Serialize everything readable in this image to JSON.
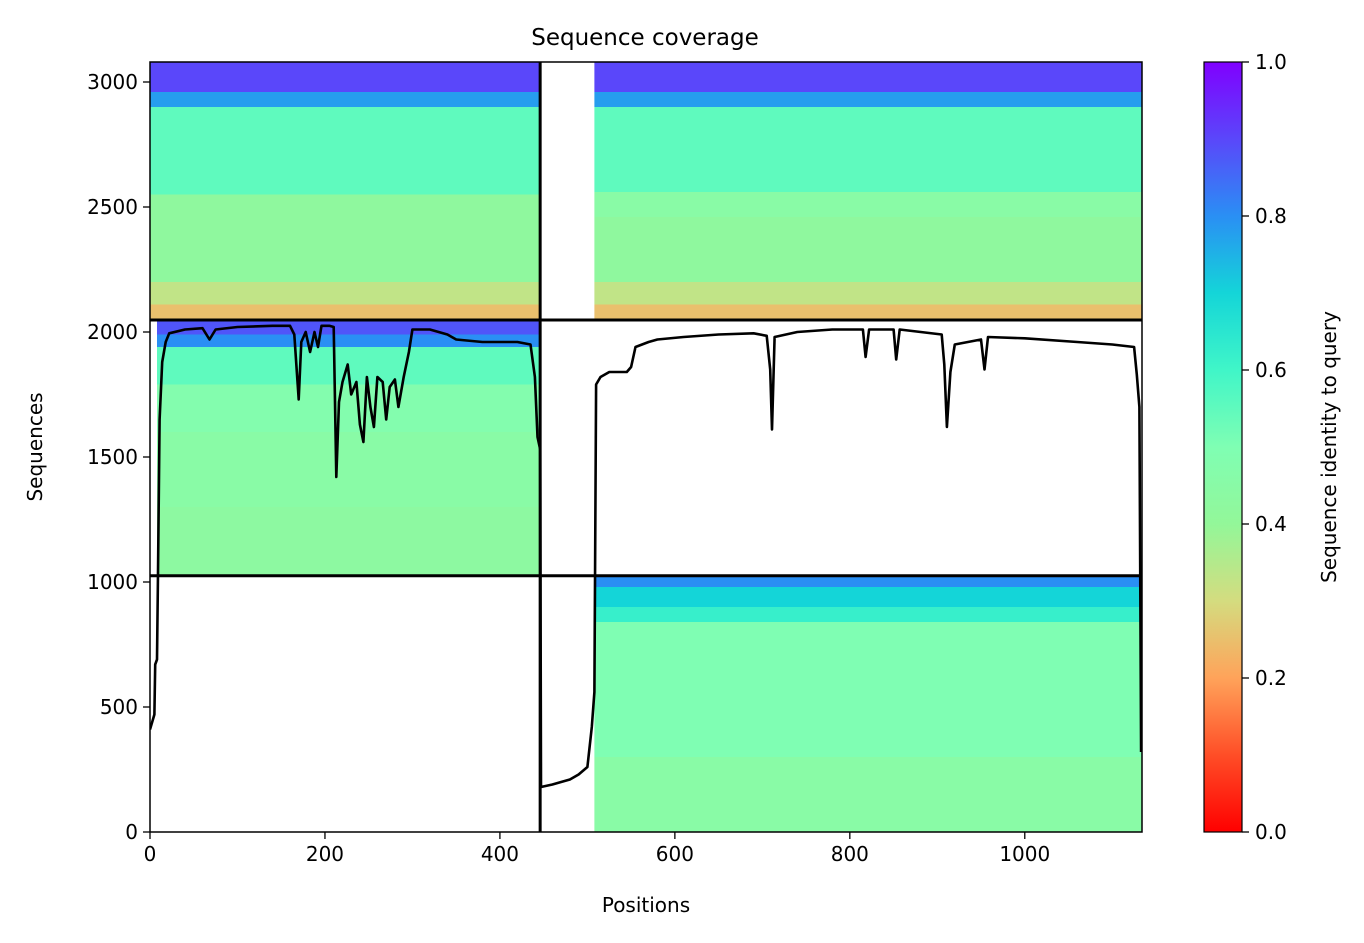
{
  "chart_data": {
    "type": "heatmap",
    "title": "Sequence coverage",
    "xlabel": "Positions",
    "ylabel": "Sequences",
    "xlim": [
      0,
      1134
    ],
    "ylim": [
      0,
      3080
    ],
    "x_ticks": [
      0,
      200,
      400,
      600,
      800,
      1000
    ],
    "y_ticks": [
      0,
      500,
      1000,
      1500,
      2000,
      2500,
      3000
    ],
    "colorbar": {
      "label": "Sequence identity to query",
      "range": [
        0,
        1
      ],
      "ticks": [
        0.0,
        0.2,
        0.4,
        0.6,
        0.8,
        1.0
      ],
      "tick_labels": [
        "0.0",
        "0.2",
        "0.4",
        "0.6",
        "0.8",
        "1.0"
      ],
      "colormap": "rainbow_r"
    },
    "chain_boundary_x": 446,
    "block_boundaries_y": [
      1025,
      2048
    ],
    "blocks": [
      {
        "x": [
          0,
          446
        ],
        "y": [
          2048,
          3080
        ],
        "coverage_start_x": 0,
        "identity_bands": [
          [
            2048,
            2110,
            0.25
          ],
          [
            2110,
            2200,
            0.33
          ],
          [
            2200,
            2550,
            0.42
          ],
          [
            2550,
            2900,
            0.55
          ],
          [
            2900,
            2960,
            0.78
          ],
          [
            2960,
            3080,
            0.9
          ]
        ]
      },
      {
        "x": [
          446,
          1134
        ],
        "y": [
          2048,
          3080
        ],
        "coverage_start_x": 508,
        "identity_bands": [
          [
            2048,
            2110,
            0.25
          ],
          [
            2110,
            2200,
            0.33
          ],
          [
            2200,
            2460,
            0.42
          ],
          [
            2460,
            2560,
            0.45
          ],
          [
            2560,
            2900,
            0.55
          ],
          [
            2900,
            2960,
            0.78
          ],
          [
            2960,
            3080,
            0.9
          ]
        ]
      },
      {
        "x": [
          0,
          446
        ],
        "y": [
          1025,
          2048
        ],
        "coverage_start_x": 8,
        "identity_bands": [
          [
            1025,
            1300,
            0.43
          ],
          [
            1300,
            1600,
            0.45
          ],
          [
            1600,
            1790,
            0.48
          ],
          [
            1790,
            1940,
            0.55
          ],
          [
            1940,
            1990,
            0.8
          ],
          [
            1990,
            2048,
            0.88
          ]
        ]
      },
      {
        "x": [
          446,
          1134
        ],
        "y": [
          0,
          1025
        ],
        "coverage_start_x": 508,
        "identity_bands": [
          [
            0,
            300,
            0.45
          ],
          [
            300,
            840,
            0.5
          ],
          [
            840,
            900,
            0.62
          ],
          [
            900,
            980,
            0.7
          ],
          [
            980,
            1025,
            0.8
          ]
        ]
      }
    ],
    "coverage_line": {
      "name": "coverage",
      "color": "#000000",
      "points": [
        [
          0,
          410
        ],
        [
          5,
          470
        ],
        [
          6,
          670
        ],
        [
          8,
          690
        ],
        [
          9,
          1000
        ],
        [
          11,
          1650
        ],
        [
          14,
          1880
        ],
        [
          18,
          1960
        ],
        [
          22,
          1995
        ],
        [
          40,
          2010
        ],
        [
          60,
          2015
        ],
        [
          68,
          1970
        ],
        [
          75,
          2010
        ],
        [
          100,
          2020
        ],
        [
          140,
          2025
        ],
        [
          160,
          2025
        ],
        [
          165,
          1990
        ],
        [
          170,
          1730
        ],
        [
          173,
          1960
        ],
        [
          178,
          2000
        ],
        [
          183,
          1920
        ],
        [
          188,
          2000
        ],
        [
          192,
          1940
        ],
        [
          196,
          2025
        ],
        [
          205,
          2025
        ],
        [
          210,
          2020
        ],
        [
          213,
          1420
        ],
        [
          216,
          1720
        ],
        [
          220,
          1800
        ],
        [
          226,
          1870
        ],
        [
          230,
          1750
        ],
        [
          236,
          1800
        ],
        [
          240,
          1630
        ],
        [
          244,
          1560
        ],
        [
          248,
          1820
        ],
        [
          252,
          1700
        ],
        [
          256,
          1620
        ],
        [
          260,
          1820
        ],
        [
          266,
          1800
        ],
        [
          270,
          1650
        ],
        [
          274,
          1780
        ],
        [
          280,
          1810
        ],
        [
          284,
          1700
        ],
        [
          290,
          1820
        ],
        [
          296,
          1920
        ],
        [
          300,
          2010
        ],
        [
          320,
          2010
        ],
        [
          340,
          1990
        ],
        [
          350,
          1970
        ],
        [
          380,
          1960
        ],
        [
          420,
          1960
        ],
        [
          435,
          1950
        ],
        [
          440,
          1820
        ],
        [
          443,
          1580
        ],
        [
          446,
          1530
        ],
        [
          447,
          180
        ],
        [
          460,
          190
        ],
        [
          470,
          200
        ],
        [
          480,
          210
        ],
        [
          490,
          230
        ],
        [
          500,
          260
        ],
        [
          505,
          420
        ],
        [
          508,
          560
        ],
        [
          510,
          1790
        ],
        [
          515,
          1820
        ],
        [
          525,
          1840
        ],
        [
          545,
          1840
        ],
        [
          550,
          1860
        ],
        [
          555,
          1940
        ],
        [
          570,
          1960
        ],
        [
          580,
          1970
        ],
        [
          610,
          1980
        ],
        [
          650,
          1990
        ],
        [
          690,
          1995
        ],
        [
          705,
          1985
        ],
        [
          709,
          1850
        ],
        [
          711,
          1610
        ],
        [
          714,
          1980
        ],
        [
          740,
          2000
        ],
        [
          780,
          2010
        ],
        [
          815,
          2010
        ],
        [
          818,
          1900
        ],
        [
          822,
          2010
        ],
        [
          850,
          2010
        ],
        [
          853,
          1890
        ],
        [
          857,
          2010
        ],
        [
          905,
          1990
        ],
        [
          908,
          1870
        ],
        [
          911,
          1620
        ],
        [
          915,
          1840
        ],
        [
          920,
          1950
        ],
        [
          950,
          1970
        ],
        [
          954,
          1850
        ],
        [
          958,
          1980
        ],
        [
          1000,
          1975
        ],
        [
          1060,
          1960
        ],
        [
          1100,
          1950
        ],
        [
          1125,
          1940
        ],
        [
          1128,
          1830
        ],
        [
          1131,
          1700
        ],
        [
          1133,
          320
        ]
      ]
    }
  }
}
